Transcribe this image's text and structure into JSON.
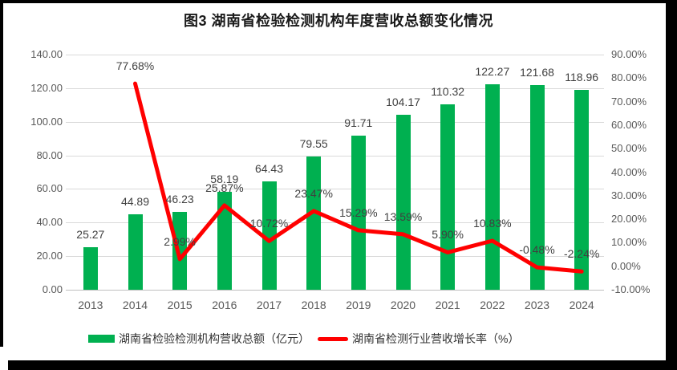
{
  "title": "图3 湖南省检验检测机构年度营收总额变化情况",
  "chart_data": {
    "type": "combo-bar-line",
    "categories": [
      "2013",
      "2014",
      "2015",
      "2016",
      "2017",
      "2018",
      "2019",
      "2020",
      "2021",
      "2022",
      "2023",
      "2024"
    ],
    "series": [
      {
        "name": "湖南省检验检测机构营收总额（亿元）",
        "type": "bar",
        "axis": "left",
        "values": [
          25.27,
          44.89,
          46.23,
          58.19,
          64.43,
          79.55,
          91.71,
          104.17,
          110.32,
          122.27,
          121.68,
          118.96
        ],
        "labels": [
          "25.27",
          "44.89",
          "46.23",
          "58.19",
          "64.43",
          "79.55",
          "91.71",
          "104.17",
          "110.32",
          "122.27",
          "121.68",
          "118.96"
        ]
      },
      {
        "name": "湖南省检测行业营收增长率（%）",
        "type": "line",
        "axis": "right",
        "values": [
          null,
          77.68,
          2.99,
          25.87,
          10.72,
          23.47,
          15.29,
          13.59,
          5.9,
          10.83,
          -0.48,
          -2.24
        ],
        "labels": [
          null,
          "77.68%",
          "2.99%",
          "25.87%",
          "10.72%",
          "23.47%",
          "15.29%",
          "13.59%",
          "5.90%",
          "10.83%",
          "-0.48%",
          "-2.24%"
        ]
      }
    ],
    "left_axis": {
      "min": 0,
      "max": 140,
      "step": 20,
      "tick_labels": [
        "140.00",
        "120.00",
        "100.00",
        "80.00",
        "60.00",
        "40.00",
        "20.00",
        "0.00"
      ]
    },
    "right_axis": {
      "min": -10,
      "max": 90,
      "step": 10,
      "tick_labels": [
        "90.00%",
        "80.00%",
        "70.00%",
        "60.00%",
        "50.00%",
        "40.00%",
        "30.00%",
        "20.00%",
        "10.00%",
        "0.00%",
        "-10.00%"
      ]
    },
    "grid": true,
    "legend_position": "bottom"
  },
  "legend": {
    "bar_label": "湖南省检验检测机构营收总额（亿元）",
    "line_label": "湖南省检测行业营收增长率（%）"
  },
  "colors": {
    "bar": "#00B050",
    "line": "#FF0000",
    "gridline": "#D9D9D9",
    "axis_text": "#595959",
    "label_text": "#404040",
    "title_text": "#1A1A1A"
  }
}
